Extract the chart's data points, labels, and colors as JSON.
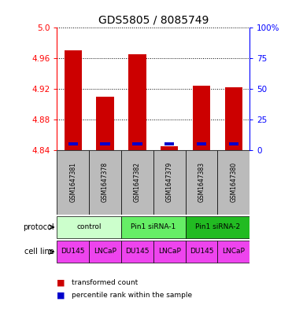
{
  "title": "GDS5805 / 8085749",
  "samples": [
    "GSM1647381",
    "GSM1647378",
    "GSM1647382",
    "GSM1647379",
    "GSM1647383",
    "GSM1647380"
  ],
  "red_values": [
    4.971,
    4.91,
    4.965,
    4.845,
    4.924,
    4.922
  ],
  "blue_values": [
    4.846,
    4.846,
    4.846,
    4.846,
    4.846,
    4.846
  ],
  "ymin": 4.84,
  "ymax": 5.0,
  "yticks": [
    4.84,
    4.88,
    4.92,
    4.96,
    5.0
  ],
  "right_yticks": [
    0,
    25,
    50,
    75,
    100
  ],
  "right_yticklabels": [
    "0",
    "25",
    "50",
    "75",
    "100%"
  ],
  "protocol_groups": [
    {
      "label": "control",
      "start": 0,
      "end": 2,
      "color": "#ccffcc"
    },
    {
      "label": "Pin1 siRNA-1",
      "start": 2,
      "end": 4,
      "color": "#66ee66"
    },
    {
      "label": "Pin1 siRNA-2",
      "start": 4,
      "end": 6,
      "color": "#22bb22"
    }
  ],
  "cell_lines": [
    "DU145",
    "LNCaP",
    "DU145",
    "LNCaP",
    "DU145",
    "LNCaP"
  ],
  "cell_line_color": "#ee44ee",
  "sample_bg_color": "#bbbbbb",
  "bar_width": 0.55,
  "red_color": "#cc0000",
  "blue_color": "#0000cc",
  "title_fontsize": 10,
  "tick_fontsize": 7.5,
  "sample_fontsize": 5.5,
  "annot_fontsize": 7,
  "legend_fontsize": 6.5
}
